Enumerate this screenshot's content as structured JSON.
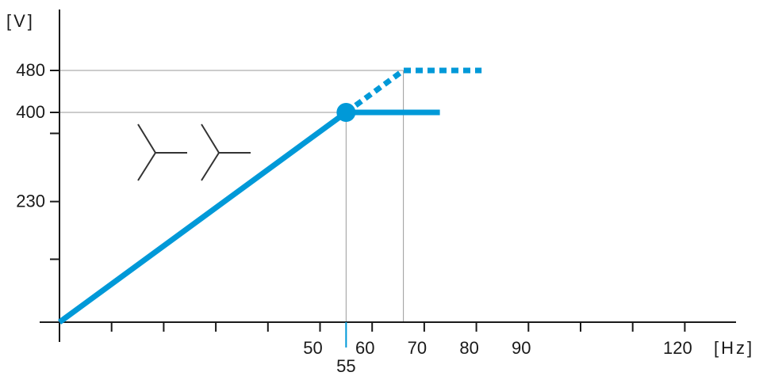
{
  "chart_data": {
    "type": "line",
    "xlabel": "[Hz]",
    "ylabel": "[V]",
    "xlim": [
      0,
      130
    ],
    "ylim": [
      0,
      480
    ],
    "x_ticks": [
      10,
      20,
      30,
      40,
      50,
      60,
      70,
      80,
      90,
      100,
      110,
      120
    ],
    "x_tick_labels": [
      {
        "value": 50,
        "label": "50"
      },
      {
        "value": 60,
        "label": "60"
      },
      {
        "value": 70,
        "label": "70"
      },
      {
        "value": 80,
        "label": "80"
      },
      {
        "value": 90,
        "label": "90"
      },
      {
        "value": 120,
        "label": "120"
      }
    ],
    "y_ticks": [
      120,
      230,
      360,
      400,
      480
    ],
    "y_tick_labels": [
      {
        "value": 230,
        "label": "230"
      },
      {
        "value": 400,
        "label": "400"
      },
      {
        "value": 480,
        "label": "480"
      }
    ],
    "grid": false,
    "reference_lines": [
      {
        "from": [
          0,
          480
        ],
        "to": [
          66,
          480
        ]
      },
      {
        "from": [
          0,
          400
        ],
        "to": [
          55,
          400
        ]
      },
      {
        "from": [
          55,
          0
        ],
        "to": [
          55,
          400
        ]
      },
      {
        "from": [
          66,
          0
        ],
        "to": [
          66,
          480
        ]
      }
    ],
    "highlight_point": {
      "x": 55,
      "y": 400,
      "label": "55"
    },
    "series": [
      {
        "style": "solid",
        "points": [
          [
            0,
            0
          ],
          [
            55,
            400
          ],
          [
            73,
            400
          ]
        ]
      },
      {
        "style": "dotted",
        "points": [
          [
            55,
            400
          ],
          [
            66,
            480
          ],
          [
            81,
            480
          ]
        ]
      }
    ],
    "symbols": [
      "wye",
      "wye"
    ],
    "color": "#0099d8"
  }
}
